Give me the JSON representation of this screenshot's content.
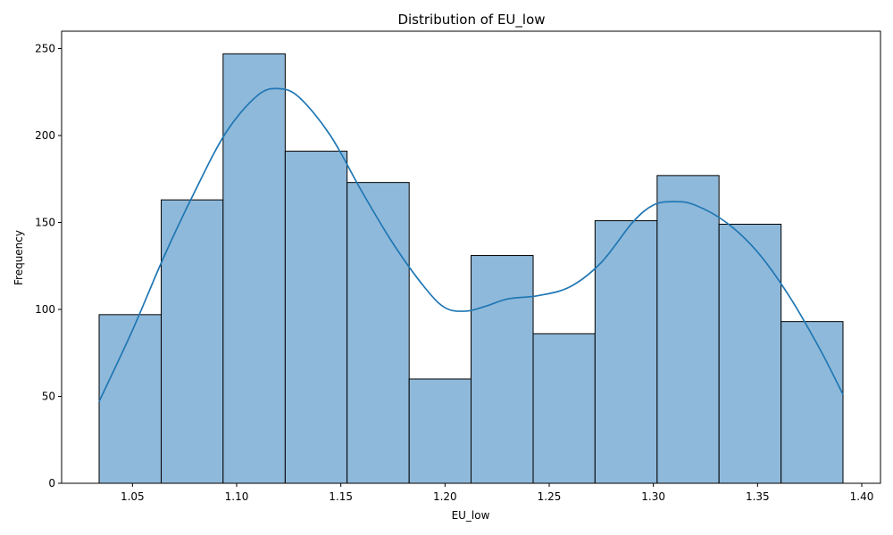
{
  "chart_data": {
    "type": "bar",
    "title": "Distribution of EU_low",
    "xlabel": "EU_low",
    "ylabel": "Frequency",
    "bins": [
      {
        "start": 1.034,
        "end": 1.0638,
        "count": 97
      },
      {
        "start": 1.0638,
        "end": 1.0935,
        "count": 163
      },
      {
        "start": 1.0935,
        "end": 1.1233,
        "count": 247
      },
      {
        "start": 1.1233,
        "end": 1.153,
        "count": 191
      },
      {
        "start": 1.153,
        "end": 1.1828,
        "count": 173
      },
      {
        "start": 1.1828,
        "end": 1.2125,
        "count": 60
      },
      {
        "start": 1.2125,
        "end": 1.2423,
        "count": 131
      },
      {
        "start": 1.2423,
        "end": 1.272,
        "count": 86
      },
      {
        "start": 1.272,
        "end": 1.3018,
        "count": 151
      },
      {
        "start": 1.3018,
        "end": 1.3315,
        "count": 177
      },
      {
        "start": 1.3315,
        "end": 1.3613,
        "count": 149
      },
      {
        "start": 1.3613,
        "end": 1.391,
        "count": 93
      }
    ],
    "kde": {
      "x": [
        1.034,
        1.05,
        1.065,
        1.08,
        1.095,
        1.11,
        1.12,
        1.13,
        1.145,
        1.16,
        1.175,
        1.19,
        1.2,
        1.21,
        1.22,
        1.23,
        1.245,
        1.26,
        1.275,
        1.29,
        1.3,
        1.31,
        1.32,
        1.335,
        1.35,
        1.365,
        1.38,
        1.391
      ],
      "y": [
        47,
        88,
        130,
        168,
        202,
        223,
        227,
        222,
        200,
        168,
        138,
        113,
        101,
        99,
        102,
        106,
        108,
        113,
        127,
        150,
        160,
        162,
        160,
        150,
        133,
        108,
        77,
        51
      ]
    },
    "xlim": [
      1.016,
      1.409
    ],
    "ylim": [
      0,
      260
    ],
    "xticks": [
      1.05,
      1.1,
      1.15,
      1.2,
      1.25,
      1.3,
      1.35,
      1.4
    ],
    "xtick_labels": [
      "1.05",
      "1.10",
      "1.15",
      "1.20",
      "1.25",
      "1.30",
      "1.35",
      "1.40"
    ],
    "yticks": [
      0,
      50,
      100,
      150,
      200,
      250
    ],
    "ytick_labels": [
      "0",
      "50",
      "100",
      "150",
      "200",
      "250"
    ],
    "bar_color": "#8fb9da",
    "bar_edge_color": "#000000",
    "line_color": "#1f77b4",
    "grid": false
  }
}
